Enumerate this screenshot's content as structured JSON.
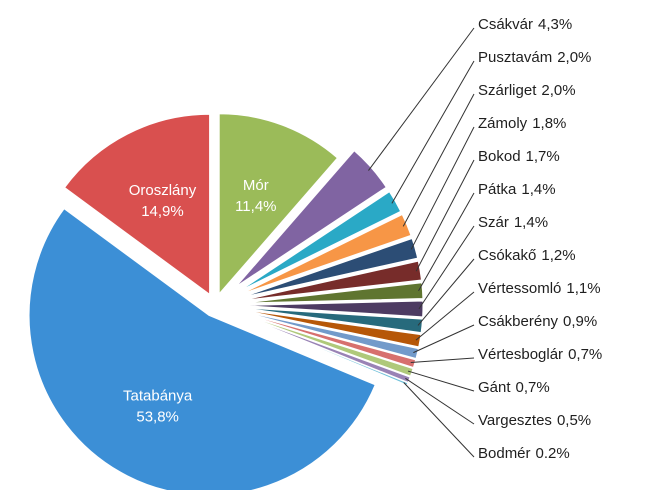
{
  "chart_data": {
    "type": "pie",
    "categories": [
      "Mór",
      "Csákvár",
      "Pusztavám",
      "Szárliget",
      "Zámoly",
      "Bokod",
      "Pátka",
      "Szár",
      "Csókakő",
      "Vértessomló",
      "Csákberény",
      "Vértesboglár",
      "Gánt",
      "Vargesztes",
      "Bodmér",
      "Tatabánya",
      "Oroszlány"
    ],
    "values": [
      11.4,
      4.3,
      2.0,
      2.0,
      1.8,
      1.7,
      1.4,
      1.4,
      1.2,
      1.1,
      0.9,
      0.7,
      0.7,
      0.5,
      0.2,
      53.8,
      14.9
    ],
    "value_labels": [
      "11,4%",
      "4,3%",
      "2,0%",
      "2,0%",
      "1,8%",
      "1,7%",
      "1,4%",
      "1,4%",
      "1,2%",
      "1,1%",
      "0,9%",
      "0,7%",
      "0,7%",
      "0,5%",
      "0.2%",
      "53,8%",
      "14,9%"
    ],
    "colors": [
      "#9bbb59",
      "#8064a2",
      "#2aa9c6",
      "#f79646",
      "#2c4d75",
      "#772c2a",
      "#5f7530",
      "#4d3b62",
      "#276a7c",
      "#b65708",
      "#729aca",
      "#d7706e",
      "#afc97a",
      "#9983b5",
      "#6fc0d9",
      "#3c8fd6",
      "#d9504f"
    ]
  }
}
